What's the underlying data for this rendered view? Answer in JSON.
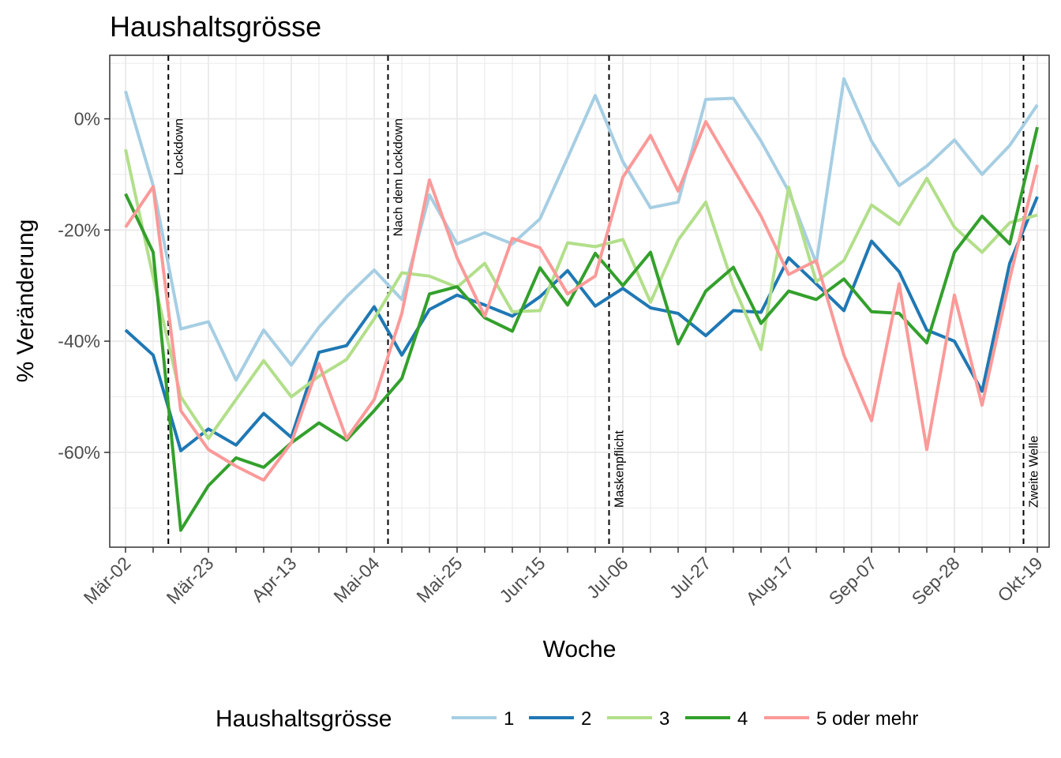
{
  "chart_data": {
    "type": "line",
    "title": "Haushaltsgrösse",
    "xlabel": "Woche",
    "ylabel": "% Veränderung",
    "ylim": [
      -78,
      11.5
    ],
    "y_ticks": [
      0,
      -20,
      -40,
      -60
    ],
    "y_tick_labels": [
      "0%",
      "-20%",
      "-40%",
      "-60%"
    ],
    "x_start": "2020-03-02",
    "x_tick_labels": [
      "Mär-02",
      "Mär-23",
      "Apr-13",
      "Mai-04",
      "Mai-25",
      "Jun-15",
      "Jul-06",
      "Jul-27",
      "Aug-17",
      "Sep-07",
      "Sep-28",
      "Okt-19"
    ],
    "grid": true,
    "legend_position": "bottom",
    "legend_title": "Haushaltsgrösse",
    "events": [
      {
        "week": 1.55,
        "label": "Lockdown"
      },
      {
        "week": 9.5,
        "label": "Nach dem Lockdown"
      },
      {
        "week": 17.5,
        "label": "Maskenpflicht"
      },
      {
        "week": 32.5,
        "label": "Zweite Welle"
      }
    ],
    "series": [
      {
        "name": "1",
        "color": "#a6cee3",
        "values": [
          5,
          -12,
          -37.8,
          -36.5,
          -47,
          -38,
          -44.3,
          -37.5,
          -32,
          -27.2,
          -32.5,
          -13.7,
          -22.5,
          -20.5,
          -22.5,
          -18,
          -7,
          4.2,
          -7.7,
          -16,
          -15,
          3.5,
          3.7,
          -4,
          -13,
          -26,
          7.2,
          -4,
          -12,
          -8.5,
          -3.8,
          -10,
          -4.8,
          2.5
        ]
      },
      {
        "name": "2",
        "color": "#1f78b4",
        "values": [
          -38,
          -42.5,
          -59.7,
          -55.8,
          -58.7,
          -53,
          -57.3,
          -42,
          -40.8,
          -33.8,
          -42.5,
          -34.3,
          -31.7,
          -33.5,
          -35.5,
          -32,
          -27.3,
          -33.7,
          -30.5,
          -34,
          -35,
          -39,
          -34.5,
          -34.8,
          -25,
          -29.7,
          -34.5,
          -22,
          -27.5,
          -38,
          -40,
          -49,
          -26,
          -14
        ]
      },
      {
        "name": "3",
        "color": "#b2df8a",
        "values": [
          -5.5,
          -28.5,
          -50,
          -57.5,
          -50.5,
          -43.5,
          -50,
          -46.3,
          -43.3,
          -36,
          -27.7,
          -28.3,
          -30.3,
          -26,
          -34.7,
          -34.5,
          -22.3,
          -23,
          -21.7,
          -33,
          -21.8,
          -15,
          -30,
          -41.5,
          -12.3,
          -29.3,
          -25.5,
          -15.5,
          -19,
          -10.7,
          -19.5,
          -24,
          -18.7,
          -17.3
        ]
      },
      {
        "name": "4",
        "color": "#33a02c",
        "values": [
          -13.5,
          -24,
          -74,
          -66,
          -61,
          -62.7,
          -58.3,
          -54.7,
          -57.8,
          -52.5,
          -46.7,
          -31.5,
          -30.2,
          -35.8,
          -38.2,
          -26.8,
          -33.5,
          -24.2,
          -30,
          -24,
          -40.5,
          -31,
          -26.7,
          -36.8,
          -31,
          -32.5,
          -28.8,
          -34.7,
          -35,
          -40.3,
          -24,
          -17.5,
          -22.5,
          -1.5
        ]
      },
      {
        "name": "5 oder mehr",
        "color": "#fb9a99",
        "values": [
          -19.5,
          -12.2,
          -52.5,
          -59.5,
          -62.5,
          -65,
          -58.3,
          -44,
          -57.5,
          -50.5,
          -35,
          -11,
          -25,
          -35.5,
          -21.5,
          -23.2,
          -31.5,
          -28.3,
          -10.5,
          -3,
          -13,
          -0.5,
          -9,
          -17.5,
          -28,
          -25.5,
          -42.5,
          -54.3,
          -29.7,
          -59.5,
          -31.7,
          -51.5,
          -28.8,
          -8.3
        ]
      }
    ]
  }
}
